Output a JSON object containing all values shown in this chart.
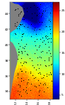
{
  "title": "",
  "lon_min": 141.0,
  "lon_max": 148.5,
  "lat_min": 33.0,
  "lat_max": 45.5,
  "colorbar_ticks": [
    5,
    10,
    15,
    20,
    25
  ],
  "cmap": "jet",
  "vmin": 4,
  "vmax": 27,
  "lat_ticks": [
    34,
    36,
    38,
    40,
    42,
    44
  ],
  "lon_ticks": [
    142,
    144,
    146,
    148
  ],
  "background_land": "#808080",
  "dot_color": "black",
  "dot_size": 0.8,
  "figsize": [
    0.92,
    1.48
  ],
  "dpi": 100
}
